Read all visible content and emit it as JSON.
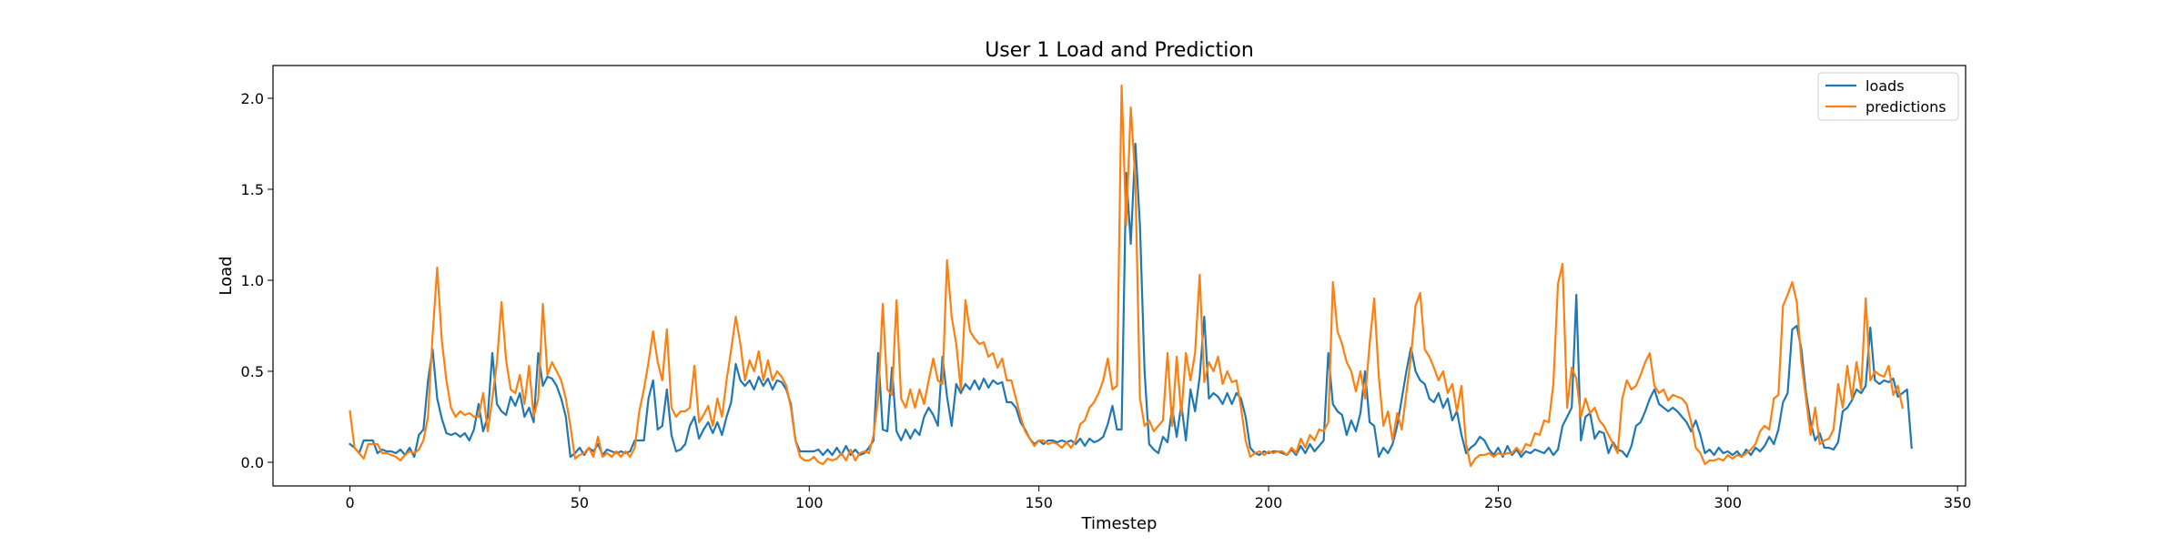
{
  "chart_data": {
    "type": "line",
    "title": "User 1 Load and Prediction",
    "xlabel": "Timestep",
    "ylabel": "Load",
    "xlim": [
      -16.75,
      351.75
    ],
    "ylim": [
      -0.13,
      2.18
    ],
    "xticks": [
      0,
      50,
      100,
      150,
      200,
      250,
      300,
      350
    ],
    "yticks": [
      0.0,
      0.5,
      1.0,
      1.5,
      2.0
    ],
    "legend_position": "top-right",
    "grid": false,
    "series": [
      {
        "name": "loads",
        "color": "#1f77b4",
        "values": [
          0.1,
          0.08,
          0.05,
          0.12,
          0.12,
          0.12,
          0.05,
          0.07,
          0.06,
          0.06,
          0.05,
          0.07,
          0.04,
          0.08,
          0.03,
          0.15,
          0.18,
          0.45,
          0.62,
          0.35,
          0.24,
          0.16,
          0.15,
          0.16,
          0.14,
          0.16,
          0.12,
          0.18,
          0.32,
          0.17,
          0.25,
          0.6,
          0.32,
          0.28,
          0.26,
          0.36,
          0.31,
          0.38,
          0.25,
          0.3,
          0.22,
          0.6,
          0.42,
          0.47,
          0.46,
          0.42,
          0.35,
          0.25,
          0.03,
          0.05,
          0.08,
          0.04,
          0.08,
          0.06,
          0.1,
          0.04,
          0.07,
          0.06,
          0.05,
          0.06,
          0.05,
          0.06,
          0.12,
          0.12,
          0.12,
          0.35,
          0.45,
          0.18,
          0.2,
          0.4,
          0.15,
          0.06,
          0.07,
          0.1,
          0.2,
          0.25,
          0.13,
          0.18,
          0.22,
          0.16,
          0.22,
          0.15,
          0.25,
          0.33,
          0.54,
          0.45,
          0.42,
          0.45,
          0.4,
          0.47,
          0.42,
          0.46,
          0.4,
          0.45,
          0.44,
          0.4,
          0.32,
          0.12,
          0.06,
          0.06,
          0.06,
          0.06,
          0.07,
          0.04,
          0.07,
          0.04,
          0.08,
          0.04,
          0.09,
          0.04,
          0.07,
          0.04,
          0.05,
          0.08,
          0.12,
          0.6,
          0.18,
          0.17,
          0.52,
          0.17,
          0.12,
          0.18,
          0.13,
          0.18,
          0.15,
          0.25,
          0.3,
          0.26,
          0.2,
          0.58,
          0.36,
          0.2,
          0.43,
          0.38,
          0.43,
          0.4,
          0.45,
          0.4,
          0.46,
          0.41,
          0.45,
          0.43,
          0.44,
          0.33,
          0.33,
          0.3,
          0.22,
          0.18,
          0.13,
          0.1,
          0.12,
          0.1,
          0.12,
          0.12,
          0.11,
          0.12,
          0.11,
          0.12,
          0.1,
          0.13,
          0.09,
          0.13,
          0.11,
          0.12,
          0.14,
          0.21,
          0.31,
          0.18,
          0.18,
          1.59,
          1.2,
          1.75,
          1.3,
          0.5,
          0.1,
          0.07,
          0.05,
          0.14,
          0.11,
          0.3,
          0.14,
          0.32,
          0.12,
          0.4,
          0.28,
          0.47,
          0.8,
          0.35,
          0.38,
          0.36,
          0.32,
          0.38,
          0.32,
          0.38,
          0.35,
          0.25,
          0.08,
          0.05,
          0.04,
          0.06,
          0.05,
          0.06,
          0.06,
          0.05,
          0.04,
          0.07,
          0.04,
          0.09,
          0.05,
          0.1,
          0.06,
          0.09,
          0.12,
          0.6,
          0.32,
          0.28,
          0.26,
          0.15,
          0.23,
          0.17,
          0.27,
          0.5,
          0.22,
          0.2,
          0.03,
          0.08,
          0.05,
          0.1,
          0.2,
          0.35,
          0.5,
          0.63,
          0.5,
          0.45,
          0.43,
          0.35,
          0.33,
          0.38,
          0.3,
          0.35,
          0.23,
          0.28,
          0.15,
          0.05,
          0.08,
          0.1,
          0.14,
          0.12,
          0.07,
          0.04,
          0.08,
          0.03,
          0.09,
          0.04,
          0.07,
          0.03,
          0.06,
          0.05,
          0.07,
          0.06,
          0.05,
          0.08,
          0.04,
          0.07,
          0.2,
          0.25,
          0.3,
          0.92,
          0.12,
          0.25,
          0.27,
          0.13,
          0.17,
          0.16,
          0.05,
          0.11,
          0.07,
          0.06,
          0.03,
          0.09,
          0.2,
          0.22,
          0.28,
          0.35,
          0.4,
          0.32,
          0.3,
          0.28,
          0.3,
          0.28,
          0.25,
          0.22,
          0.17,
          0.23,
          0.15,
          0.05,
          0.07,
          0.04,
          0.08,
          0.05,
          0.06,
          0.04,
          0.06,
          0.03,
          0.07,
          0.04,
          0.08,
          0.06,
          0.09,
          0.14,
          0.1,
          0.18,
          0.33,
          0.38,
          0.73,
          0.75,
          0.62,
          0.38,
          0.22,
          0.12,
          0.16,
          0.08,
          0.08,
          0.07,
          0.11,
          0.28,
          0.3,
          0.34,
          0.4,
          0.38,
          0.42,
          0.74,
          0.45,
          0.43,
          0.45,
          0.44,
          0.46,
          0.36,
          0.38,
          0.4,
          0.08
        ]
      },
      {
        "name": "predictions",
        "color": "#ff7f0e",
        "values": [
          0.28,
          0.08,
          0.05,
          0.02,
          0.1,
          0.1,
          0.1,
          0.05,
          0.05,
          0.04,
          0.03,
          0.01,
          0.04,
          0.06,
          0.05,
          0.07,
          0.12,
          0.25,
          0.7,
          1.07,
          0.67,
          0.45,
          0.3,
          0.25,
          0.28,
          0.26,
          0.27,
          0.25,
          0.25,
          0.38,
          0.17,
          0.35,
          0.55,
          0.88,
          0.56,
          0.4,
          0.38,
          0.48,
          0.32,
          0.53,
          0.25,
          0.35,
          0.87,
          0.48,
          0.55,
          0.5,
          0.45,
          0.35,
          0.2,
          0.02,
          0.04,
          0.05,
          0.08,
          0.03,
          0.14,
          0.03,
          0.05,
          0.03,
          0.06,
          0.03,
          0.06,
          0.03,
          0.08,
          0.28,
          0.4,
          0.55,
          0.72,
          0.55,
          0.45,
          0.73,
          0.3,
          0.25,
          0.28,
          0.28,
          0.3,
          0.53,
          0.22,
          0.26,
          0.31,
          0.2,
          0.35,
          0.25,
          0.45,
          0.62,
          0.8,
          0.65,
          0.45,
          0.56,
          0.5,
          0.61,
          0.45,
          0.56,
          0.45,
          0.5,
          0.47,
          0.42,
          0.3,
          0.12,
          0.03,
          0.01,
          0.01,
          0.03,
          0.0,
          -0.01,
          0.02,
          0.01,
          0.02,
          0.05,
          0.01,
          0.07,
          0.01,
          0.05,
          0.06,
          0.05,
          0.15,
          0.35,
          0.87,
          0.4,
          0.37,
          0.89,
          0.35,
          0.3,
          0.4,
          0.3,
          0.4,
          0.32,
          0.45,
          0.57,
          0.45,
          0.43,
          1.11,
          0.8,
          0.65,
          0.4,
          0.89,
          0.72,
          0.68,
          0.65,
          0.66,
          0.58,
          0.6,
          0.52,
          0.57,
          0.45,
          0.45,
          0.35,
          0.25,
          0.17,
          0.13,
          0.09,
          0.12,
          0.12,
          0.1,
          0.11,
          0.1,
          0.08,
          0.11,
          0.08,
          0.12,
          0.21,
          0.23,
          0.3,
          0.33,
          0.38,
          0.45,
          0.57,
          0.4,
          0.42,
          2.07,
          1.3,
          1.95,
          1.55,
          0.35,
          0.2,
          0.23,
          0.17,
          0.2,
          0.23,
          0.6,
          0.2,
          0.58,
          0.26,
          0.6,
          0.45,
          0.6,
          1.03,
          0.44,
          0.55,
          0.5,
          0.58,
          0.43,
          0.5,
          0.44,
          0.45,
          0.3,
          0.12,
          0.03,
          0.05,
          0.06,
          0.04,
          0.06,
          0.05,
          0.06,
          0.06,
          0.04,
          0.08,
          0.05,
          0.13,
          0.08,
          0.15,
          0.12,
          0.18,
          0.17,
          0.22,
          0.99,
          0.72,
          0.65,
          0.55,
          0.5,
          0.39,
          0.5,
          0.35,
          0.65,
          0.9,
          0.47,
          0.2,
          0.28,
          0.12,
          0.27,
          0.18,
          0.38,
          0.58,
          0.86,
          0.93,
          0.62,
          0.58,
          0.52,
          0.45,
          0.5,
          0.38,
          0.43,
          0.28,
          0.42,
          0.1,
          -0.02,
          0.02,
          0.04,
          0.04,
          0.05,
          0.03,
          0.05,
          0.04,
          0.05,
          0.05,
          0.08,
          0.05,
          0.1,
          0.09,
          0.16,
          0.15,
          0.23,
          0.22,
          0.43,
          0.98,
          1.09,
          0.3,
          0.52,
          0.46,
          0.25,
          0.35,
          0.27,
          0.3,
          0.23,
          0.2,
          0.15,
          0.1,
          0.05,
          0.35,
          0.45,
          0.4,
          0.42,
          0.48,
          0.55,
          0.6,
          0.42,
          0.38,
          0.4,
          0.34,
          0.37,
          0.36,
          0.35,
          0.32,
          0.22,
          0.08,
          0.05,
          -0.01,
          0.01,
          0.01,
          0.02,
          0.01,
          0.04,
          0.02,
          0.04,
          0.03,
          0.05,
          0.07,
          0.1,
          0.17,
          0.2,
          0.18,
          0.35,
          0.37,
          0.86,
          0.92,
          0.99,
          0.88,
          0.55,
          0.35,
          0.15,
          0.3,
          0.1,
          0.12,
          0.13,
          0.18,
          0.43,
          0.3,
          0.53,
          0.35,
          0.55,
          0.4,
          0.9,
          0.45,
          0.5,
          0.48,
          0.47,
          0.53,
          0.37,
          0.42,
          0.3
        ]
      }
    ]
  }
}
